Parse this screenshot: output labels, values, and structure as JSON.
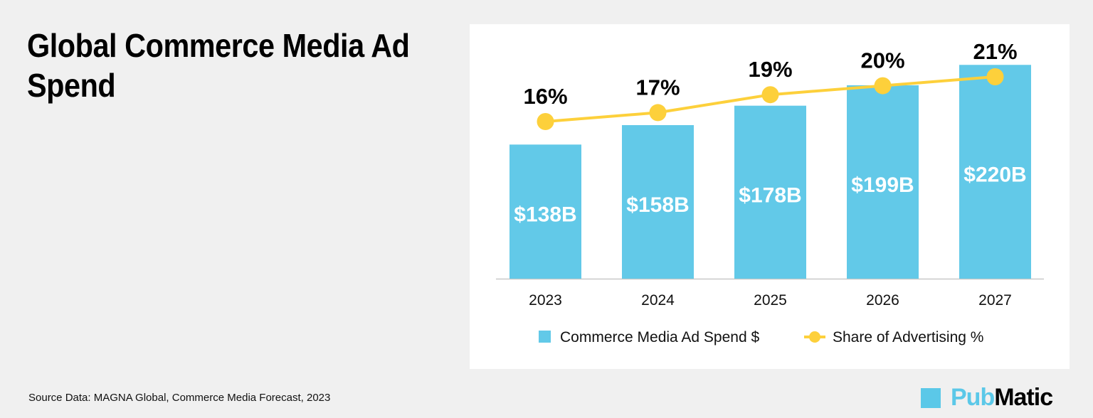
{
  "chart_data": {
    "type": "bar+line",
    "title": "Global Commerce Media Ad Spend",
    "categories": [
      "2023",
      "2024",
      "2025",
      "2026",
      "2027"
    ],
    "series": [
      {
        "name": "Commerce Media Ad Spend $",
        "type": "bar",
        "values": [
          138,
          158,
          178,
          199,
          220
        ],
        "labels": [
          "$138B",
          "$158B",
          "$178B",
          "$199B",
          "$220B"
        ],
        "color": "#62c9e8"
      },
      {
        "name": "Share of Advertising %",
        "type": "line",
        "values": [
          16,
          17,
          19,
          20,
          21
        ],
        "labels": [
          "16%",
          "17%",
          "19%",
          "20%",
          "21%"
        ],
        "color": "#fdd03b"
      }
    ],
    "legend": "bottom",
    "grid": false
  },
  "source": "Source Data: MAGNA Global, Commerce Media Forecast, 2023",
  "logo": {
    "part1": "Pub",
    "part2": "Matic"
  }
}
